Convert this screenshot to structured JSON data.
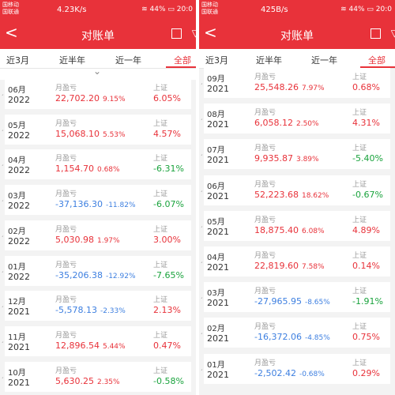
{
  "colors": {
    "primary": "#e8323a",
    "negative_pl": "#3d7fe0",
    "negative_index": "#1aa33d"
  },
  "labels": {
    "monthly_pl": "月盈亏",
    "index": "上证"
  },
  "left": {
    "status": {
      "carrier1": "国移动",
      "carrier2": "国联通",
      "speed": "4.23K/s",
      "battery": "44%",
      "time": "20:0"
    },
    "title": "对账单",
    "tabs": [
      "近3月",
      "近半年",
      "近一年",
      "全部"
    ],
    "rows": [
      {
        "month": "06月",
        "year": "2022",
        "pl": "22,702.20",
        "pl_pct": "9.15%",
        "idx": "6.05%",
        "pl_sign": "pos",
        "idx_sign": "pos"
      },
      {
        "month": "05月",
        "year": "2022",
        "pl": "15,068.10",
        "pl_pct": "5.53%",
        "idx": "4.57%",
        "pl_sign": "pos",
        "idx_sign": "pos"
      },
      {
        "month": "04月",
        "year": "2022",
        "pl": "1,154.70",
        "pl_pct": "0.68%",
        "idx": "-6.31%",
        "pl_sign": "pos",
        "idx_sign": "neg"
      },
      {
        "month": "03月",
        "year": "2022",
        "pl": "-37,136.30",
        "pl_pct": "-11.82%",
        "idx": "-6.07%",
        "pl_sign": "neg",
        "idx_sign": "neg"
      },
      {
        "month": "02月",
        "year": "2022",
        "pl": "5,030.98",
        "pl_pct": "1.97%",
        "idx": "3.00%",
        "pl_sign": "pos",
        "idx_sign": "pos"
      },
      {
        "month": "01月",
        "year": "2022",
        "pl": "-35,206.38",
        "pl_pct": "-12.92%",
        "idx": "-7.65%",
        "pl_sign": "neg",
        "idx_sign": "neg"
      },
      {
        "month": "12月",
        "year": "2021",
        "pl": "-5,578.13",
        "pl_pct": "-2.33%",
        "idx": "2.13%",
        "pl_sign": "neg",
        "idx_sign": "pos"
      },
      {
        "month": "11月",
        "year": "2021",
        "pl": "12,896.54",
        "pl_pct": "5.44%",
        "idx": "0.47%",
        "pl_sign": "pos",
        "idx_sign": "pos"
      },
      {
        "month": "10月",
        "year": "2021",
        "pl": "5,630.25",
        "pl_pct": "2.35%",
        "idx": "-0.58%",
        "pl_sign": "pos",
        "idx_sign": "neg"
      }
    ]
  },
  "right": {
    "status": {
      "carrier1": "国移动",
      "carrier2": "国联通",
      "speed": "425B/s",
      "battery": "44%",
      "time": "20:0"
    },
    "title": "对账单",
    "tabs": [
      "近3月",
      "近半年",
      "近一年",
      "全部"
    ],
    "rows": [
      {
        "month": "09月",
        "year": "2021",
        "pl": "25,548.26",
        "pl_pct": "7.97%",
        "idx": "0.68%",
        "pl_sign": "pos",
        "idx_sign": "pos"
      },
      {
        "month": "08月",
        "year": "2021",
        "pl": "6,058.12",
        "pl_pct": "2.50%",
        "idx": "4.31%",
        "pl_sign": "pos",
        "idx_sign": "pos"
      },
      {
        "month": "07月",
        "year": "2021",
        "pl": "9,935.87",
        "pl_pct": "3.89%",
        "idx": "-5.40%",
        "pl_sign": "pos",
        "idx_sign": "neg"
      },
      {
        "month": "06月",
        "year": "2021",
        "pl": "52,223.68",
        "pl_pct": "18.62%",
        "idx": "-0.67%",
        "pl_sign": "pos",
        "idx_sign": "neg"
      },
      {
        "month": "05月",
        "year": "2021",
        "pl": "18,875.40",
        "pl_pct": "6.08%",
        "idx": "4.89%",
        "pl_sign": "pos",
        "idx_sign": "pos"
      },
      {
        "month": "04月",
        "year": "2021",
        "pl": "22,819.60",
        "pl_pct": "7.58%",
        "idx": "0.14%",
        "pl_sign": "pos",
        "idx_sign": "pos"
      },
      {
        "month": "03月",
        "year": "2021",
        "pl": "-27,965.95",
        "pl_pct": "-8.65%",
        "idx": "-1.91%",
        "pl_sign": "neg",
        "idx_sign": "neg"
      },
      {
        "month": "02月",
        "year": "2021",
        "pl": "-16,372.06",
        "pl_pct": "-4.85%",
        "idx": "0.75%",
        "pl_sign": "neg",
        "idx_sign": "pos"
      },
      {
        "month": "01月",
        "year": "2021",
        "pl": "-2,502.42",
        "pl_pct": "-0.68%",
        "idx": "0.29%",
        "pl_sign": "neg",
        "idx_sign": "pos"
      }
    ]
  }
}
